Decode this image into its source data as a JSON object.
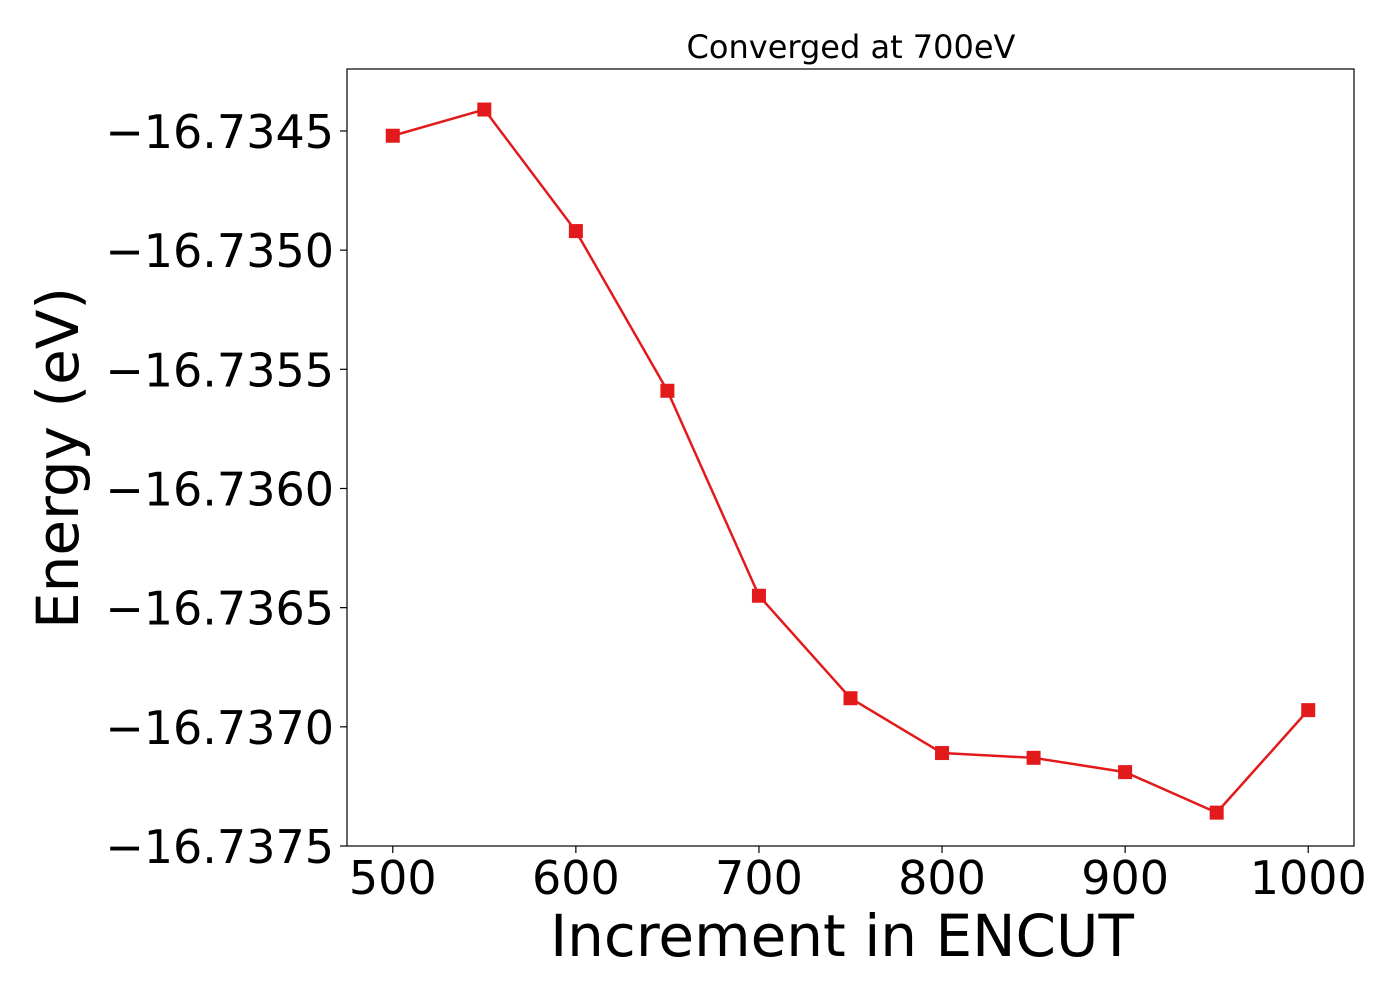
{
  "chart_data": {
    "type": "line",
    "title": "Converged at 700eV",
    "xlabel": "Increment in ENCUT",
    "ylabel": "Energy (eV)",
    "x": [
      500,
      550,
      600,
      650,
      700,
      750,
      800,
      850,
      900,
      950,
      1000
    ],
    "series": [
      {
        "values": [
          -16.73452,
          -16.73441,
          -16.73492,
          -16.73559,
          -16.73645,
          -16.73688,
          -16.73711,
          -16.73713,
          -16.73719,
          -16.73736,
          -16.73693
        ],
        "color": "#e31a1c",
        "marker": "square"
      }
    ],
    "xlim": [
      475,
      1025
    ],
    "ylim": [
      -16.7375,
      -16.73424
    ],
    "xticks": [
      500,
      600,
      700,
      800,
      900,
      1000
    ],
    "xtick_labels": [
      "500",
      "600",
      "700",
      "800",
      "900",
      "1000"
    ],
    "yticks": [
      -16.7345,
      -16.735,
      -16.7355,
      -16.736,
      -16.7365,
      -16.737,
      -16.7375
    ],
    "ytick_labels": [
      "−16.7345",
      "−16.7350",
      "−16.7355",
      "−16.7360",
      "−16.7365",
      "−16.7370",
      "−16.7375"
    ],
    "grid": false,
    "legend": "none"
  }
}
